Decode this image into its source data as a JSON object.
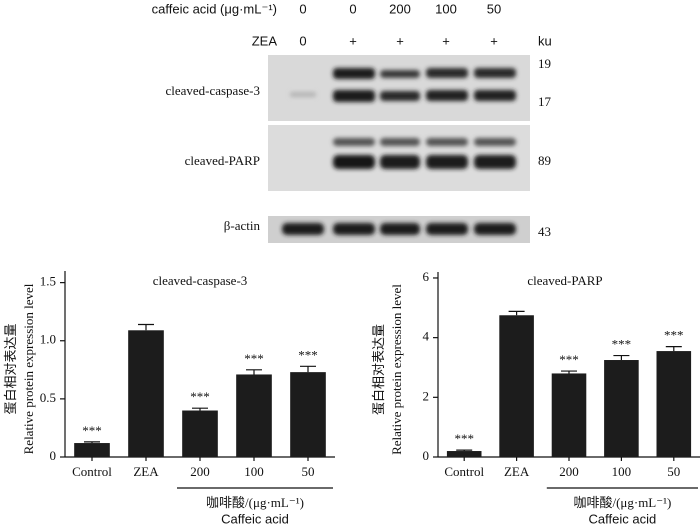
{
  "blot": {
    "treatment_rows": [
      {
        "label": "caffeic acid (μg·mL⁻¹)",
        "lanes": [
          "0",
          "0",
          "200",
          "100",
          "50"
        ]
      },
      {
        "label": "ZEA",
        "lanes": [
          "0",
          "+",
          "+",
          "+",
          "+"
        ]
      }
    ],
    "unit": "ku",
    "panels": [
      {
        "label": "cleaved-caspase-3",
        "markers": [
          "19",
          "17"
        ]
      },
      {
        "label": "cleaved-PARP",
        "markers": [
          "89"
        ]
      },
      {
        "label": "β-actin",
        "markers": [
          "43"
        ]
      }
    ]
  },
  "chart_data": [
    {
      "type": "bar",
      "title": "cleaved-caspase-3",
      "y_label": [
        "蛋白相对表达量",
        "Relative protein expression level"
      ],
      "x_label": [
        "咖啡酸/(μg·mL⁻¹)",
        "Caffeic acid"
      ],
      "categories": [
        "Control",
        "ZEA",
        "200",
        "100",
        "50"
      ],
      "values": [
        0.12,
        1.09,
        0.4,
        0.71,
        0.73
      ],
      "errors": [
        0.01,
        0.05,
        0.02,
        0.04,
        0.05
      ],
      "significance": [
        "***",
        null,
        "***",
        "***",
        "***"
      ],
      "color": "#1c1c1c",
      "ylim": [
        0,
        1.6
      ],
      "yticks": [
        0,
        0.5,
        {
          "value": 1,
          "label": "1.0"
        },
        1.5
      ]
    },
    {
      "type": "bar",
      "title": "cleaved-PARP",
      "y_label": [
        "蛋白相对表达量",
        "Relative protein expression level"
      ],
      "x_label": [
        "咖啡酸/(μg·mL⁻¹)",
        "Caffeic acid"
      ],
      "categories": [
        "Control",
        "ZEA",
        "200",
        "100",
        "50"
      ],
      "values": [
        0.2,
        4.75,
        2.8,
        3.25,
        3.55
      ],
      "errors": [
        0.03,
        0.13,
        0.08,
        0.15,
        0.15
      ],
      "significance": [
        "***",
        null,
        "***",
        "***",
        "***"
      ],
      "color": "#1c1c1c",
      "ylim": [
        0,
        6.2
      ],
      "yticks": [
        0,
        2,
        4,
        6
      ]
    }
  ]
}
